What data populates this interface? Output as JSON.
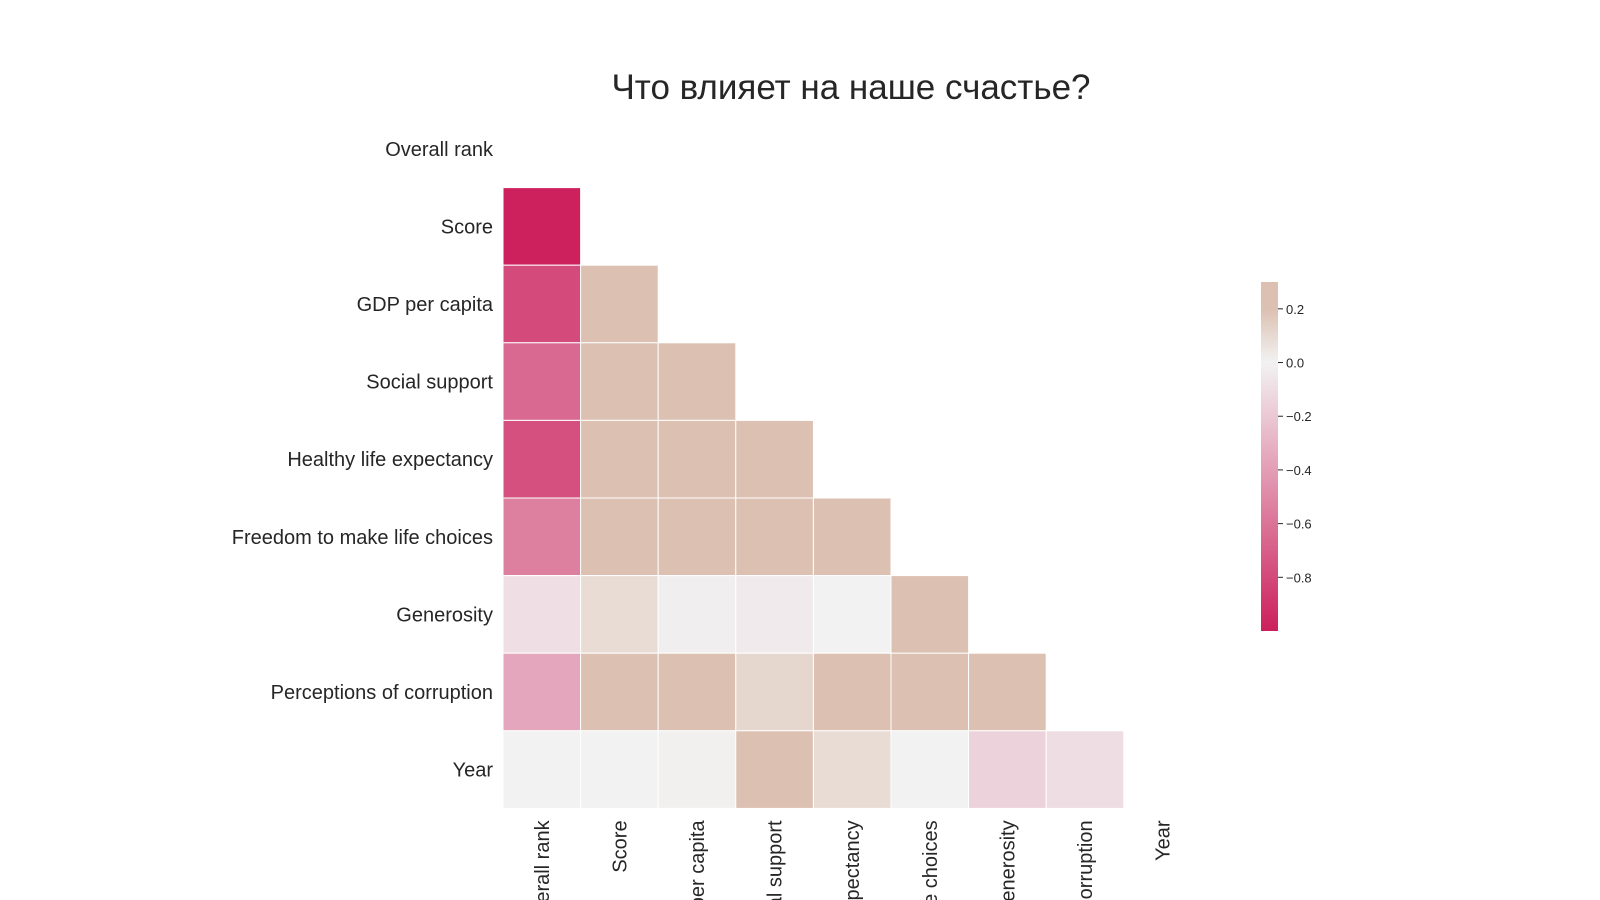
{
  "chart_data": {
    "type": "heatmap",
    "title": "Что влияет на наше счастье?",
    "variables": [
      "Overall rank",
      "Score",
      "GDP per capita",
      "Social support",
      "Healthy life expectancy",
      "Freedom to make life choices",
      "Generosity",
      "Perceptions of corruption",
      "Year"
    ],
    "x_tick_labels": [
      "erall rank",
      "Score",
      "per capita",
      "al support",
      "xpectancy",
      "e choices",
      "enerosity",
      "corruption",
      "Year"
    ],
    "mask": "upper-triangle-including-diagonal",
    "values": [
      [
        null,
        null,
        null,
        null,
        null,
        null,
        null,
        null,
        null
      ],
      [
        -0.99,
        null,
        null,
        null,
        null,
        null,
        null,
        null,
        null
      ],
      [
        -0.79,
        0.79,
        null,
        null,
        null,
        null,
        null,
        null,
        null
      ],
      [
        -0.65,
        0.65,
        0.75,
        null,
        null,
        null,
        null,
        null,
        null
      ],
      [
        -0.77,
        0.78,
        0.83,
        0.71,
        null,
        null,
        null,
        null,
        null
      ],
      [
        -0.54,
        0.55,
        0.35,
        0.42,
        0.37,
        null,
        null,
        null,
        null
      ],
      [
        -0.09,
        0.09,
        -0.02,
        -0.04,
        0.0,
        0.3,
        null,
        null,
        null
      ],
      [
        -0.36,
        0.4,
        0.3,
        0.11,
        0.25,
        0.45,
        0.3,
        null,
        null
      ],
      [
        0.0,
        0.0,
        0.01,
        0.3,
        0.09,
        0.0,
        -0.15,
        -0.1,
        null
      ]
    ],
    "colorbar": {
      "min": -1.0,
      "max": 0.3,
      "ticks": [
        0.2,
        0.0,
        -0.2,
        -0.4,
        -0.6,
        -0.8
      ],
      "tick_labels": [
        "0.2",
        "0.0",
        "−0.2",
        "−0.4",
        "−0.6",
        "−0.8"
      ],
      "colors": {
        "negative": "#cc1f5b",
        "neutral": "#f2f2f2",
        "positive": "#dcc0b1"
      },
      "saturate_above": 0.2
    }
  }
}
